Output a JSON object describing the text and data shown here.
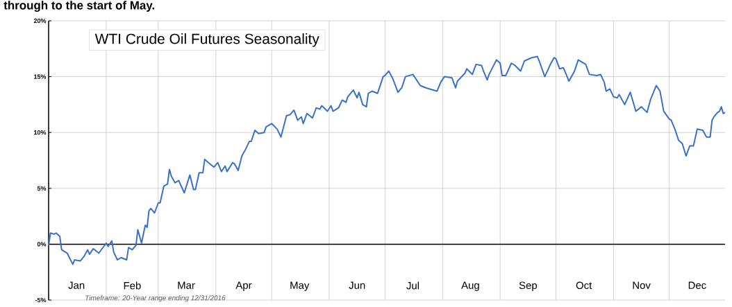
{
  "chart_data": {
    "type": "line",
    "title": "WTI Crude Oil Futures Seasonality",
    "annotations": [
      "through to the start of May.",
      "Timeframe: 20-Year range ending 12/31/2016"
    ],
    "x": [
      "--01-01",
      "--01-02",
      "--01-04",
      "--01-05",
      "--01-07",
      "--01-08",
      "--01-11",
      "--01-14",
      "--01-15",
      "--01-18",
      "--01-20",
      "--01-22",
      "--01-23",
      "--01-25",
      "--01-28",
      "--02-01",
      "--02-02",
      "--02-04",
      "--02-05",
      "--02-07",
      "--02-09",
      "--02-12",
      "--02-13",
      "--02-15",
      "--02-17",
      "--02-18",
      "--02-20",
      "--02-22",
      "--02-23",
      "--02-24",
      "--02-25",
      "--02-27",
      "--03-01",
      "--03-02",
      "--03-04",
      "--03-06",
      "--03-07",
      "--03-08",
      "--03-10",
      "--03-12",
      "--03-15",
      "--03-18",
      "--03-20",
      "--03-21",
      "--03-23",
      "--03-25",
      "--03-26",
      "--03-28",
      "--03-31",
      "--04-02",
      "--04-04",
      "--04-06",
      "--04-07",
      "--04-10",
      "--04-11",
      "--04-13",
      "--04-15",
      "--04-17",
      "--04-19",
      "--04-20",
      "--04-22",
      "--04-24",
      "--04-27",
      "--04-28",
      "--05-01",
      "--05-04",
      "--05-06",
      "--05-09",
      "--05-11",
      "--05-13",
      "--05-15",
      "--05-17",
      "--05-18",
      "--05-20",
      "--05-23",
      "--05-25",
      "--05-27",
      "--05-28",
      "--05-31",
      "--06-02",
      "--06-03",
      "--06-06",
      "--06-08",
      "--06-10",
      "--06-11",
      "--06-14",
      "--06-16",
      "--06-17",
      "--06-19",
      "--06-21",
      "--06-22",
      "--06-24",
      "--06-27",
      "--06-30",
      "--07-01",
      "--07-03",
      "--07-05",
      "--07-08",
      "--07-10",
      "--07-12",
      "--07-16",
      "--07-18",
      "--07-20",
      "--07-23",
      "--07-27",
      "--07-29",
      "--07-31",
      "--08-02",
      "--08-06",
      "--08-08",
      "--08-09",
      "--08-13",
      "--08-14",
      "--08-17",
      "--08-19",
      "--08-22",
      "--08-23",
      "--08-25",
      "--08-26",
      "--08-30",
      "--09-01",
      "--09-02",
      "--09-04",
      "--09-07",
      "--09-09",
      "--09-12",
      "--09-14",
      "--09-18",
      "--09-21",
      "--09-22",
      "--09-25",
      "--09-28",
      "--09-30",
      "--10-01",
      "--10-03",
      "--10-05",
      "--10-08",
      "--10-11",
      "--10-13",
      "--10-17",
      "--10-19",
      "--10-23",
      "--10-25",
      "--10-27",
      "--10-28",
      "--10-30",
      "--11-01",
      "--11-03",
      "--11-04",
      "--11-07",
      "--11-10",
      "--11-13",
      "--11-16",
      "--11-19",
      "--11-21",
      "--11-24",
      "--11-26",
      "--11-28",
      "--12-01",
      "--12-02",
      "--12-04",
      "--12-06",
      "--12-08",
      "--12-10",
      "--12-12",
      "--12-14",
      "--12-16",
      "--12-19",
      "--12-21",
      "--12-23",
      "--12-24",
      "--12-25",
      "--12-27",
      "--12-28",
      "--12-29",
      "--12-30",
      "--12-31"
    ],
    "series": [
      {
        "color": "#3a6fc8",
        "values": [
          -0.1,
          1.0,
          0.9,
          1.0,
          0.7,
          -0.5,
          -0.8,
          -1.8,
          -1.4,
          -1.5,
          -1.1,
          -0.5,
          -0.9,
          -0.4,
          -0.8,
          0.1,
          -0.2,
          0.3,
          -0.7,
          -1.4,
          -1.2,
          -1.4,
          -0.3,
          -0.5,
          -0.1,
          1.3,
          0.1,
          1.7,
          1.5,
          3.0,
          3.2,
          2.8,
          3.7,
          3.7,
          5.2,
          5.4,
          6.7,
          6.1,
          5.5,
          5.7,
          4.6,
          6.2,
          4.9,
          4.9,
          6.4,
          6.4,
          7.6,
          7.3,
          6.9,
          7.3,
          6.5,
          7.0,
          6.5,
          7.3,
          7.2,
          6.6,
          7.9,
          8.5,
          9.2,
          9.2,
          10.2,
          9.9,
          10.0,
          10.5,
          10.8,
          10.3,
          9.6,
          11.5,
          11.6,
          12.0,
          11.1,
          11.4,
          10.8,
          11.7,
          11.3,
          12.2,
          12.1,
          12.4,
          11.9,
          12.4,
          11.9,
          12.2,
          12.9,
          12.7,
          13.2,
          13.8,
          13.1,
          13.6,
          12.5,
          12.3,
          13.5,
          13.7,
          13.5,
          15.0,
          15.1,
          15.5,
          14.9,
          13.6,
          14.0,
          15.0,
          15.2,
          14.7,
          14.2,
          14.0,
          13.8,
          13.7,
          14.5,
          15.0,
          14.9,
          14.0,
          14.6,
          15.3,
          15.7,
          15.2,
          16.1,
          16.0,
          15.5,
          14.7,
          15.2,
          16.5,
          16.2,
          15.1,
          15.1,
          16.2,
          16.0,
          15.5,
          16.4,
          16.7,
          16.8,
          16.4,
          15.0,
          16.1,
          16.7,
          16.6,
          15.7,
          15.8,
          14.6,
          15.5,
          16.5,
          16.1,
          15.2,
          15.1,
          15.2,
          14.5,
          13.7,
          13.9,
          13.2,
          13.1,
          13.4,
          12.5,
          13.6,
          11.9,
          12.3,
          11.8,
          13.0,
          14.2,
          13.7,
          11.9,
          11.2,
          11.1,
          10.3,
          9.3,
          9.0,
          7.9,
          8.8,
          8.8,
          10.3,
          10.2,
          9.6,
          9.6,
          11.1,
          11.4,
          11.8,
          11.9,
          12.3,
          11.7,
          11.8
        ]
      }
    ],
    "xlim": [
      "--01-01",
      "--12-31"
    ],
    "xticks": [
      {
        "value": "--01-01",
        "label": null
      },
      {
        "value": "--01-16",
        "label": "Jan"
      },
      {
        "value": "--02-01",
        "label": null
      },
      {
        "value": "--02-15",
        "label": "Feb"
      },
      {
        "value": "--03-01",
        "label": null
      },
      {
        "value": "--03-16",
        "label": "Mar"
      },
      {
        "value": "--04-01",
        "label": null
      },
      {
        "value": "--04-16",
        "label": "Apr"
      },
      {
        "value": "--05-01",
        "label": null
      },
      {
        "value": "--05-16",
        "label": "May"
      },
      {
        "value": "--06-01",
        "label": null
      },
      {
        "value": "--06-16",
        "label": "Jun"
      },
      {
        "value": "--07-01",
        "label": null
      },
      {
        "value": "--07-16",
        "label": "Jul"
      },
      {
        "value": "--08-01",
        "label": null
      },
      {
        "value": "--08-16",
        "label": "Aug"
      },
      {
        "value": "--09-01",
        "label": null
      },
      {
        "value": "--09-16",
        "label": "Sep"
      },
      {
        "value": "--10-01",
        "label": null
      },
      {
        "value": "--10-16",
        "label": "Oct"
      },
      {
        "value": "--11-01",
        "label": null
      },
      {
        "value": "--11-16",
        "label": "Nov"
      },
      {
        "value": "--12-01",
        "label": null
      },
      {
        "value": "--12-16",
        "label": "Dec"
      }
    ],
    "ylim": [
      -5,
      20
    ],
    "yticks": [
      {
        "value": -5,
        "label": "-5%"
      },
      {
        "value": 0,
        "label": "0%"
      },
      {
        "value": 5,
        "label": "5%"
      },
      {
        "value": 10,
        "label": "10%"
      },
      {
        "value": 15,
        "label": "15%"
      },
      {
        "value": 20,
        "label": "20%"
      }
    ],
    "ref_lines": [
      {
        "axis": "y",
        "value": 0,
        "color": "#000000"
      }
    ],
    "grid": true,
    "marker": "none",
    "line_style": "solid"
  }
}
